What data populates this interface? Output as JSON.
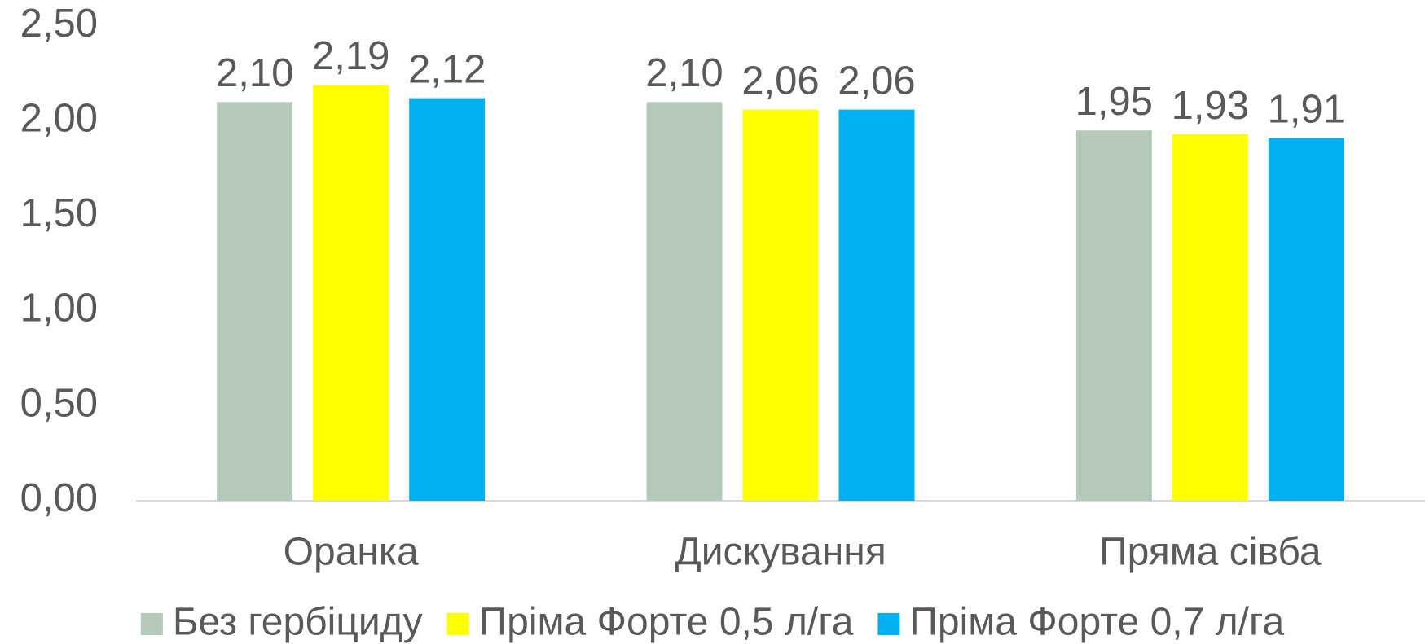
{
  "chart_data": {
    "type": "bar",
    "categories": [
      "Оранка",
      "Дискування",
      "Пряма сівба"
    ],
    "series": [
      {
        "name": "Без гербіциду",
        "color": "#b5c9bb",
        "values": [
          2.1,
          2.1,
          1.95
        ],
        "value_labels": [
          "2,10",
          "2,10",
          "1,95"
        ]
      },
      {
        "name": "Пріма Форте 0,5 л/га",
        "color": "#ffff00",
        "values": [
          2.19,
          2.06,
          1.93
        ],
        "value_labels": [
          "2,19",
          "2,06",
          "1,93"
        ]
      },
      {
        "name": "Пріма Форте 0,7 л/га",
        "color": "#00b0f0",
        "values": [
          2.12,
          2.06,
          1.91
        ],
        "value_labels": [
          "2,12",
          "2,06",
          "1,91"
        ]
      }
    ],
    "ylim": [
      0,
      2.5
    ],
    "yticks": [
      {
        "value": 0,
        "label": "0,00"
      },
      {
        "value": 0.5,
        "label": "0,50"
      },
      {
        "value": 1,
        "label": "1,00"
      },
      {
        "value": 1.5,
        "label": "1,50"
      },
      {
        "value": 2,
        "label": "2,00"
      },
      {
        "value": 2.5,
        "label": "2,50"
      }
    ],
    "legend": "bottom"
  }
}
